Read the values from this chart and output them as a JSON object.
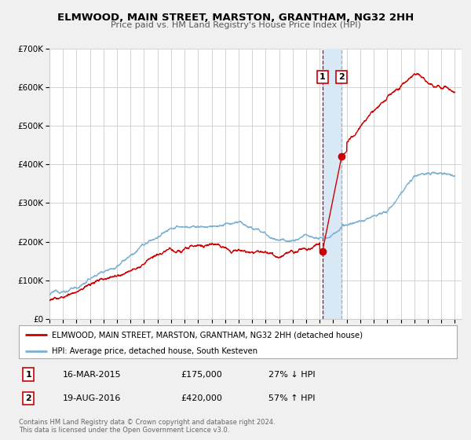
{
  "title": "ELMWOOD, MAIN STREET, MARSTON, GRANTHAM, NG32 2HH",
  "subtitle": "Price paid vs. HM Land Registry's House Price Index (HPI)",
  "ylim": [
    0,
    700000
  ],
  "yticks": [
    0,
    100000,
    200000,
    300000,
    400000,
    500000,
    600000,
    700000
  ],
  "ytick_labels": [
    "£0",
    "£100K",
    "£200K",
    "£300K",
    "£400K",
    "£500K",
    "£600K",
    "£700K"
  ],
  "xlim_start": 1995.0,
  "xlim_end": 2025.5,
  "xtick_years": [
    1995,
    1996,
    1997,
    1998,
    1999,
    2000,
    2001,
    2002,
    2003,
    2004,
    2005,
    2006,
    2007,
    2008,
    2009,
    2010,
    2011,
    2012,
    2013,
    2014,
    2015,
    2016,
    2017,
    2018,
    2019,
    2020,
    2021,
    2022,
    2023,
    2024,
    2025
  ],
  "sale1_x": 2015.21,
  "sale1_y": 175000,
  "sale2_x": 2016.63,
  "sale2_y": 420000,
  "vline1_x": 2015.21,
  "vline2_x": 2016.63,
  "shade_x1": 2015.21,
  "shade_x2": 2016.63,
  "red_line_color": "#cc0000",
  "blue_line_color": "#7ab0d4",
  "background_color": "#f0f0f0",
  "plot_bg_color": "#ffffff",
  "grid_color": "#cccccc",
  "shade_color": "#d8e8f5",
  "legend1_label": "ELMWOOD, MAIN STREET, MARSTON, GRANTHAM, NG32 2HH (detached house)",
  "legend2_label": "HPI: Average price, detached house, South Kesteven",
  "note1_label": "1",
  "note1_date": "16-MAR-2015",
  "note1_price": "£175,000",
  "note1_hpi": "27% ↓ HPI",
  "note2_label": "2",
  "note2_date": "19-AUG-2016",
  "note2_price": "£420,000",
  "note2_hpi": "57% ↑ HPI",
  "footer1": "Contains HM Land Registry data © Crown copyright and database right 2024.",
  "footer2": "This data is licensed under the Open Government Licence v3.0."
}
